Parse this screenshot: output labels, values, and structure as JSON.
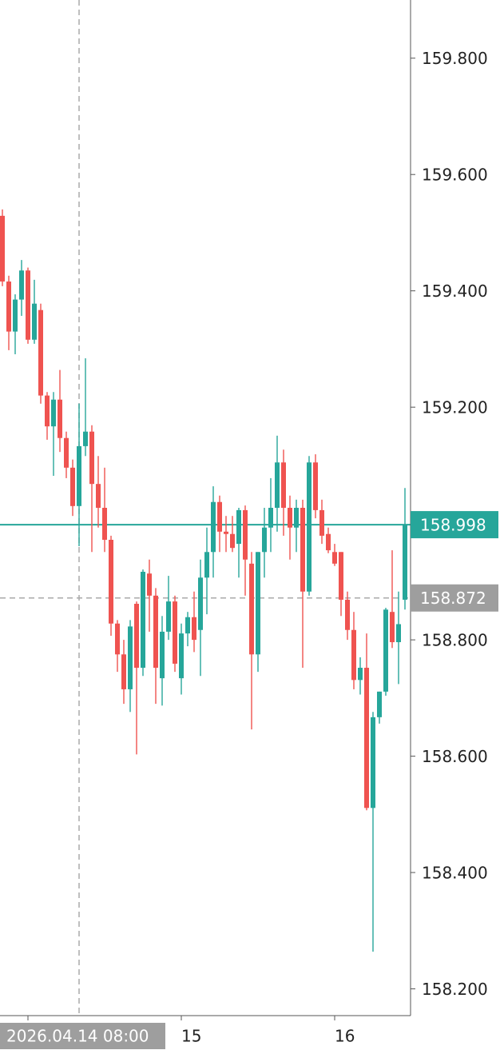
{
  "chart_data": {
    "type": "candlestick",
    "up_color": "#26a69a",
    "down_color": "#ef5350",
    "grid": true,
    "ylim": [
      158.154,
      159.9
    ],
    "yticks": [
      {
        "value": 158.2,
        "label": "158.200"
      },
      {
        "value": 158.4,
        "label": "158.400"
      },
      {
        "value": 158.6,
        "label": "158.600"
      },
      {
        "value": 158.8,
        "label": "158.800"
      },
      {
        "value": 159.2,
        "label": "159.200"
      },
      {
        "value": 159.4,
        "label": "159.400"
      },
      {
        "value": 159.6,
        "label": "159.600"
      },
      {
        "value": 159.8,
        "label": "159.800"
      }
    ],
    "xlim": [
      -0.375,
      63.875
    ],
    "xticks": [
      {
        "value": 4,
        "label": null
      },
      {
        "value": 28,
        "label": "15"
      },
      {
        "value": 52,
        "label": "16"
      }
    ],
    "current_price": {
      "value": 158.998,
      "label": "158.998"
    },
    "crosshair": {
      "x": 12,
      "x_label": "2026.04.14 08:00",
      "y": 158.872,
      "y_label": "158.872"
    },
    "series": {
      "open": [
        159.529,
        159.416,
        159.33,
        159.385,
        159.435,
        159.316,
        159.367,
        159.22,
        159.167,
        159.213,
        159.147,
        159.096,
        159.03,
        159.133,
        159.158,
        159.068,
        159.027,
        158.972,
        158.828,
        158.775,
        158.715,
        158.862,
        158.752,
        158.914,
        158.876,
        158.734,
        158.814,
        158.866,
        158.734,
        158.811,
        158.839,
        158.817,
        158.907,
        158.951,
        159.037,
        158.986,
        158.982,
        158.965,
        159.023,
        158.931,
        158.775,
        158.951,
        158.993,
        159.027,
        159.105,
        159.027,
        158.993,
        159.027,
        158.883,
        159.105,
        159.023,
        158.982,
        158.951,
        158.951,
        158.869,
        158.817,
        158.731,
        158.752,
        158.511,
        158.667,
        158.711,
        158.848,
        158.796,
        158.869
      ],
      "high": [
        159.54,
        159.426,
        159.394,
        159.453,
        159.44,
        159.419,
        159.378,
        159.226,
        159.226,
        159.264,
        159.158,
        159.11,
        159.206,
        159.284,
        159.169,
        159.116,
        159.096,
        158.979,
        158.834,
        158.8,
        158.834,
        158.866,
        158.921,
        158.938,
        158.889,
        158.841,
        158.91,
        158.876,
        158.828,
        158.848,
        158.883,
        158.938,
        158.993,
        159.064,
        159.048,
        159.013,
        159.013,
        159.027,
        159.031,
        158.951,
        158.951,
        159.027,
        159.078,
        159.151,
        159.127,
        159.048,
        159.041,
        159.041,
        159.116,
        159.119,
        159.041,
        158.993,
        158.965,
        158.951,
        158.883,
        158.848,
        158.77,
        158.811,
        158.676,
        158.711,
        158.855,
        158.954,
        158.883,
        159.061
      ],
      "low": [
        159.408,
        159.298,
        159.291,
        159.357,
        159.309,
        159.309,
        159.206,
        159.144,
        159.082,
        159.123,
        159.078,
        159.013,
        158.961,
        159.116,
        158.951,
        158.993,
        158.951,
        158.807,
        158.745,
        158.69,
        158.676,
        158.603,
        158.738,
        158.814,
        158.69,
        158.687,
        158.8,
        158.745,
        158.706,
        158.789,
        158.779,
        158.738,
        158.844,
        158.907,
        158.951,
        158.951,
        158.951,
        158.907,
        158.876,
        158.646,
        158.745,
        158.907,
        158.951,
        158.986,
        158.979,
        158.938,
        158.951,
        158.752,
        158.876,
        159.009,
        158.965,
        158.949,
        158.927,
        158.841,
        158.8,
        158.715,
        158.706,
        158.507,
        158.264,
        158.656,
        158.704,
        158.786,
        158.724,
        158.852
      ],
      "close": [
        159.416,
        159.33,
        159.385,
        159.435,
        159.316,
        159.378,
        159.22,
        159.167,
        159.213,
        159.147,
        159.096,
        159.03,
        159.133,
        159.158,
        159.068,
        159.027,
        158.972,
        158.828,
        158.775,
        158.715,
        158.823,
        158.752,
        158.917,
        158.876,
        158.752,
        158.814,
        158.866,
        158.759,
        158.811,
        158.839,
        158.8,
        158.907,
        158.951,
        159.037,
        158.986,
        158.982,
        158.958,
        159.023,
        158.938,
        158.775,
        158.951,
        158.993,
        159.027,
        159.105,
        159.027,
        158.993,
        159.027,
        158.883,
        159.105,
        159.023,
        158.979,
        158.954,
        158.931,
        158.869,
        158.817,
        158.731,
        158.752,
        158.511,
        158.667,
        158.711,
        158.852,
        158.796,
        158.827,
        158.998
      ]
    }
  }
}
